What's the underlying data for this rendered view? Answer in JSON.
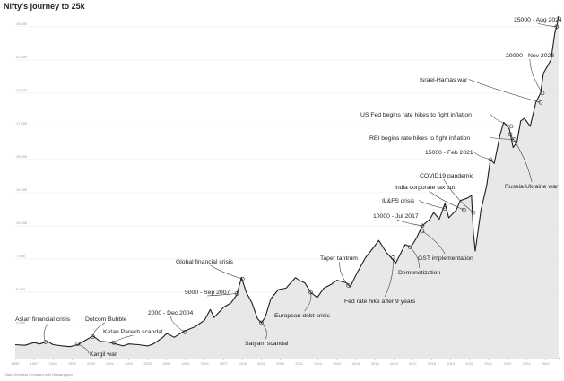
{
  "chart_data": {
    "type": "area",
    "title": "Nifty's journey to 25k",
    "credit": "Chart: Zerodha • Created with Datawrapper",
    "xlabel": "",
    "ylabel": "",
    "xlim": [
      1996,
      2024.75
    ],
    "ylim": [
      0,
      26000
    ],
    "grid": "horizontal",
    "fill_color": "#e8e8e8",
    "line_color": "#1f1f1f",
    "x_ticks": [
      "1996",
      "1997",
      "1998",
      "1999",
      "2000",
      "2001",
      "2002",
      "2003",
      "2004",
      "2005",
      "2006",
      "2007",
      "2008",
      "2009",
      "2010",
      "2011",
      "2012",
      "2013",
      "2014",
      "2015",
      "2016",
      "2017",
      "2018",
      "2019",
      "2020",
      "2021",
      "2022",
      "2023",
      "2024"
    ],
    "y_ticks": [
      2500,
      5000,
      7500,
      10000,
      12500,
      15000,
      17500,
      20000,
      22500,
      25000
    ],
    "y_tick_labels": [
      "2,500",
      "5,000",
      "7,500",
      "10,000",
      "12,500",
      "15,000",
      "17,500",
      "20,000",
      "22,500",
      "25,000"
    ],
    "series": [
      {
        "x": [
          1996.0,
          1996.5,
          1997.0,
          1997.3,
          1997.7,
          1998.0,
          1998.5,
          1998.9,
          1999.3,
          1999.8,
          2000.1,
          2000.5,
          2000.9,
          2001.3,
          2001.7,
          2002.0,
          2002.5,
          2003.0,
          2003.3,
          2003.8,
          2004.0,
          2004.4,
          2004.9,
          2005.5,
          2006.0,
          2006.3,
          2006.5,
          2007.0,
          2007.4,
          2007.7,
          2007.95,
          2008.2,
          2008.5,
          2008.8,
          2009.0,
          2009.2,
          2009.5,
          2009.9,
          2010.3,
          2010.8,
          2011.0,
          2011.3,
          2011.6,
          2011.95,
          2012.3,
          2012.7,
          2013.0,
          2013.5,
          2013.7,
          2014.0,
          2014.5,
          2015.0,
          2015.2,
          2015.6,
          2016.1,
          2016.6,
          2016.9,
          2017.2,
          2017.5,
          2017.9,
          2018.1,
          2018.4,
          2018.7,
          2018.9,
          2019.3,
          2019.5,
          2019.9,
          2020.1,
          2020.2,
          2020.3,
          2020.6,
          2020.9,
          2021.1,
          2021.3,
          2021.6,
          2021.8,
          2022.1,
          2022.3,
          2022.5,
          2022.7,
          2022.9,
          2023.2,
          2023.5,
          2023.75,
          2023.9,
          2024.1,
          2024.3,
          2024.5,
          2024.6,
          2024.7
        ],
        "y": [
          1050,
          1000,
          1200,
          1100,
          1300,
          1050,
          950,
          900,
          1050,
          1450,
          1700,
          1300,
          1250,
          1100,
          950,
          1100,
          1050,
          950,
          1100,
          1600,
          1900,
          1600,
          2050,
          2400,
          2900,
          3700,
          3100,
          3850,
          4200,
          4800,
          6100,
          5000,
          4200,
          3000,
          2700,
          3100,
          4500,
          5200,
          5300,
          6100,
          5900,
          5700,
          5000,
          4600,
          5300,
          5600,
          5900,
          5700,
          5400,
          6300,
          7600,
          8500,
          8900,
          8000,
          7200,
          8600,
          8400,
          9100,
          10000,
          10500,
          11000,
          10500,
          11700,
          10600,
          11200,
          11900,
          12100,
          12300,
          9500,
          8100,
          11200,
          13000,
          15000,
          14700,
          16800,
          17800,
          17300,
          15900,
          16300,
          17900,
          18100,
          17500,
          19300,
          20000,
          21500,
          22000,
          22500,
          24500,
          25000,
          25800
        ]
      }
    ],
    "annotations": [
      {
        "text": "25000 - Aug 2024",
        "x": 2024.6,
        "y": 25000
      },
      {
        "text": "20000 - Nov 2023",
        "x": 2023.85,
        "y": 20000
      },
      {
        "text": "Israel-Hamas war",
        "x": 2023.75,
        "y": 19300
      },
      {
        "text": "US Fed begins rate hikes to fight inflation",
        "x": 2022.2,
        "y": 17500
      },
      {
        "text": "RBI begins rate hikes to fight inflation",
        "x": 2022.35,
        "y": 16500
      },
      {
        "text": "15000 - Feb 2021",
        "x": 2021.1,
        "y": 15000
      },
      {
        "text": "Russia-Ukraine war",
        "x": 2022.15,
        "y": 16900
      },
      {
        "text": "COVID19 pandemic",
        "x": 2020.2,
        "y": 11000
      },
      {
        "text": "India corporate tax cut",
        "x": 2019.7,
        "y": 11200
      },
      {
        "text": "IL&FS crisis",
        "x": 2018.7,
        "y": 11300
      },
      {
        "text": "10000 - Jul 2017",
        "x": 2017.5,
        "y": 10000
      },
      {
        "text": "GST implementation",
        "x": 2017.5,
        "y": 9600
      },
      {
        "text": "Demonetization",
        "x": 2016.85,
        "y": 8400
      },
      {
        "text": "Taper tantrum",
        "x": 2013.6,
        "y": 5500
      },
      {
        "text": "Fed rate hike after 9 years",
        "x": 2015.95,
        "y": 7600
      },
      {
        "text": "European debt crisis",
        "x": 2011.6,
        "y": 5000
      },
      {
        "text": "Global financial crisis",
        "x": 2008.0,
        "y": 6000
      },
      {
        "text": "5000 - Sep 2007",
        "x": 2007.7,
        "y": 4900
      },
      {
        "text": "Satyam scandal",
        "x": 2009.0,
        "y": 2700
      },
      {
        "text": "2000 - Dec 2004",
        "x": 2004.95,
        "y": 2000
      },
      {
        "text": "Ketan Parekh scandal",
        "x": 2001.2,
        "y": 1200
      },
      {
        "text": "Dotcom Bubble",
        "x": 2000.1,
        "y": 1650
      },
      {
        "text": "Kargil war",
        "x": 1999.3,
        "y": 1100
      },
      {
        "text": "Asian financial crisis",
        "x": 1997.6,
        "y": 1250
      }
    ]
  }
}
